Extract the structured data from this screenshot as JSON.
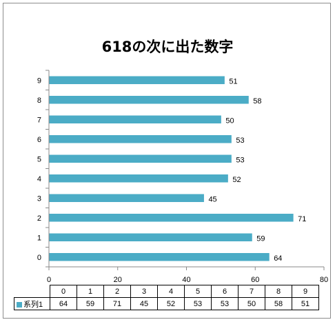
{
  "chart_data": {
    "type": "bar",
    "orientation": "horizontal",
    "title": "618の次に出た数字",
    "categories": [
      "0",
      "1",
      "2",
      "3",
      "4",
      "5",
      "6",
      "7",
      "8",
      "9"
    ],
    "series": [
      {
        "name": "系列1",
        "values": [
          64,
          59,
          71,
          45,
          52,
          53,
          53,
          50,
          58,
          51
        ],
        "color": "#4bacc6"
      }
    ],
    "value_axis": {
      "min": 0,
      "max": 80,
      "ticks": [
        0,
        20,
        40,
        60,
        80
      ]
    },
    "grid": false,
    "legend": "data-table",
    "data_labels": true
  }
}
